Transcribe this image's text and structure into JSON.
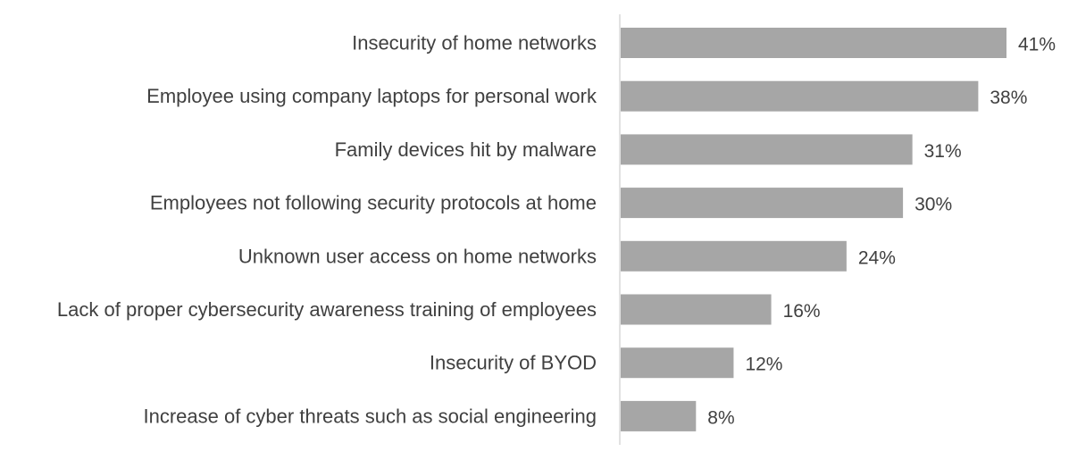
{
  "chart_data": {
    "type": "bar",
    "orientation": "horizontal",
    "title": "",
    "xlabel": "",
    "ylabel": "",
    "categories": [
      "Insecurity of home networks",
      "Employee using company laptops for personal work",
      "Family devices hit by malware",
      "Employees not following security protocols at home",
      "Unknown user access on home networks",
      "Lack of proper cybersecurity awareness training of employees",
      "Insecurity of BYOD",
      "Increase of cyber threats such as social engineering"
    ],
    "values": [
      41,
      38,
      31,
      30,
      24,
      16,
      12,
      8
    ],
    "value_labels": [
      "41%",
      "38%",
      "31%",
      "30%",
      "24%",
      "16%",
      "12%",
      "8%"
    ],
    "unit": "%",
    "xlim": [
      0,
      41
    ],
    "grid": false,
    "legend": "none",
    "colors": {
      "bar": "#a6a6a6",
      "axis": "#d9d9d9",
      "text": "#404040"
    }
  }
}
